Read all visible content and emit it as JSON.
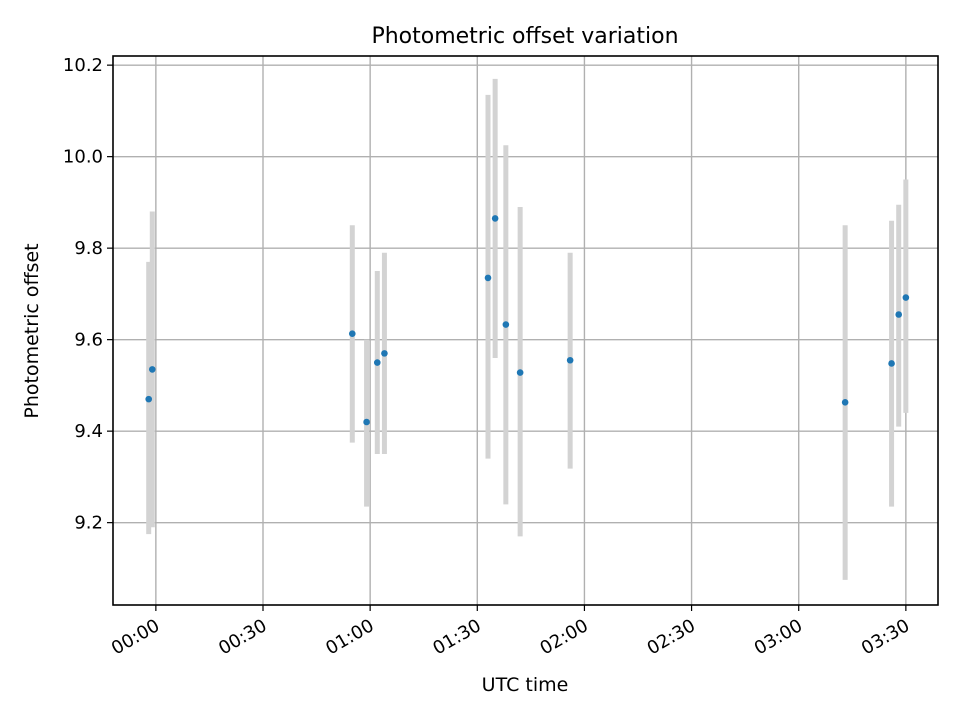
{
  "chart_data": {
    "type": "scatter",
    "title": "Photometric offset variation",
    "xlabel": "UTC time",
    "ylabel": "Photometric offset",
    "x_ticks": [
      "00:00",
      "00:30",
      "01:00",
      "01:30",
      "02:00",
      "02:30",
      "03:00",
      "03:30"
    ],
    "y_ticks": [
      "9.2",
      "9.4",
      "9.6",
      "9.8",
      "10.0",
      "10.2"
    ],
    "xlim": [
      "23:48",
      "03:39"
    ],
    "ylim": [
      9.02,
      10.22
    ],
    "grid": true,
    "colors": {
      "point": "#1f77b4",
      "errorbar": "#d3d3d3"
    },
    "points": [
      {
        "x": "23:58",
        "y": 9.47,
        "ylow": 9.175,
        "yhigh": 9.77
      },
      {
        "x": "23:59",
        "y": 9.535,
        "ylow": 9.19,
        "yhigh": 9.88
      },
      {
        "x": "00:55",
        "y": 9.613,
        "ylow": 9.375,
        "yhigh": 9.85
      },
      {
        "x": "00:59",
        "y": 9.42,
        "ylow": 9.235,
        "yhigh": 9.6
      },
      {
        "x": "01:02",
        "y": 9.55,
        "ylow": 9.35,
        "yhigh": 9.75
      },
      {
        "x": "01:04",
        "y": 9.57,
        "ylow": 9.35,
        "yhigh": 9.79
      },
      {
        "x": "01:33",
        "y": 9.735,
        "ylow": 9.34,
        "yhigh": 10.135
      },
      {
        "x": "01:35",
        "y": 9.865,
        "ylow": 9.56,
        "yhigh": 10.17
      },
      {
        "x": "01:38",
        "y": 9.633,
        "ylow": 9.24,
        "yhigh": 10.025
      },
      {
        "x": "01:42",
        "y": 9.528,
        "ylow": 9.17,
        "yhigh": 9.89
      },
      {
        "x": "01:56",
        "y": 9.555,
        "ylow": 9.318,
        "yhigh": 9.79
      },
      {
        "x": "03:13",
        "y": 9.463,
        "ylow": 9.075,
        "yhigh": 9.85
      },
      {
        "x": "03:26",
        "y": 9.548,
        "ylow": 9.235,
        "yhigh": 9.86
      },
      {
        "x": "03:28",
        "y": 9.655,
        "ylow": 9.41,
        "yhigh": 9.895
      },
      {
        "x": "03:30",
        "y": 9.692,
        "ylow": 9.44,
        "yhigh": 9.95
      }
    ]
  }
}
